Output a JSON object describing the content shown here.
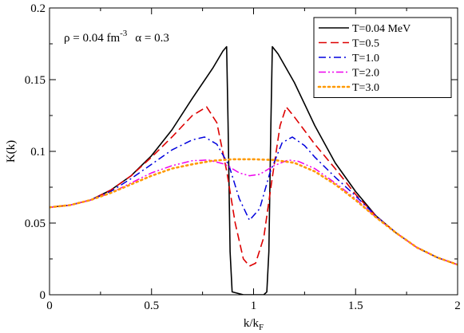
{
  "chart_data": {
    "type": "line",
    "xlabel": "k/k",
    "xlabel_sub": "F",
    "ylabel": "K(k)",
    "xlim": [
      0,
      2
    ],
    "ylim": [
      0,
      0.2
    ],
    "xticks": [
      0,
      0.5,
      1,
      1.5,
      2
    ],
    "xtick_labels": [
      "0",
      "0.5",
      "1",
      "1.5",
      "2"
    ],
    "yticks": [
      0,
      0.05,
      0.1,
      0.15,
      0.2
    ],
    "ytick_labels": [
      "0",
      "0.05",
      "0.1",
      "0.15",
      "0.2"
    ],
    "grid": false,
    "legend_position": "top-right",
    "annotation": {
      "density_label": "ρ = 0.04 fm",
      "density_exponent": "-3",
      "alpha_label": "α = 0.3"
    },
    "series": [
      {
        "name": "T=0.04 MeV",
        "color": "#000000",
        "dash": "solid",
        "points": [
          [
            0,
            0.061
          ],
          [
            0.1,
            0.0625
          ],
          [
            0.2,
            0.066
          ],
          [
            0.3,
            0.073
          ],
          [
            0.4,
            0.083
          ],
          [
            0.5,
            0.097
          ],
          [
            0.6,
            0.115
          ],
          [
            0.7,
            0.137
          ],
          [
            0.8,
            0.158
          ],
          [
            0.85,
            0.17
          ],
          [
            0.868,
            0.173
          ],
          [
            0.875,
            0.12
          ],
          [
            0.885,
            0.03
          ],
          [
            0.895,
            0.002
          ],
          [
            0.95,
            0.0
          ],
          [
            1.0,
            0.0
          ],
          [
            1.05,
            0.0
          ],
          [
            1.065,
            0.002
          ],
          [
            1.075,
            0.03
          ],
          [
            1.085,
            0.12
          ],
          [
            1.092,
            0.173
          ],
          [
            1.12,
            0.168
          ],
          [
            1.2,
            0.148
          ],
          [
            1.3,
            0.118
          ],
          [
            1.4,
            0.092
          ],
          [
            1.5,
            0.072
          ],
          [
            1.6,
            0.055
          ],
          [
            1.7,
            0.043
          ],
          [
            1.8,
            0.033
          ],
          [
            1.9,
            0.026
          ],
          [
            2.0,
            0.021
          ]
        ]
      },
      {
        "name": "T=0.5",
        "color": "#dd0000",
        "dash": "dashed",
        "points": [
          [
            0,
            0.061
          ],
          [
            0.1,
            0.0625
          ],
          [
            0.2,
            0.066
          ],
          [
            0.3,
            0.073
          ],
          [
            0.4,
            0.083
          ],
          [
            0.5,
            0.096
          ],
          [
            0.6,
            0.11
          ],
          [
            0.7,
            0.125
          ],
          [
            0.77,
            0.131
          ],
          [
            0.82,
            0.12
          ],
          [
            0.87,
            0.085
          ],
          [
            0.91,
            0.05
          ],
          [
            0.95,
            0.025
          ],
          [
            0.98,
            0.02
          ],
          [
            1.01,
            0.022
          ],
          [
            1.05,
            0.04
          ],
          [
            1.09,
            0.08
          ],
          [
            1.13,
            0.118
          ],
          [
            1.16,
            0.131
          ],
          [
            1.2,
            0.124
          ],
          [
            1.3,
            0.105
          ],
          [
            1.4,
            0.088
          ],
          [
            1.5,
            0.07
          ],
          [
            1.6,
            0.055
          ],
          [
            1.7,
            0.043
          ],
          [
            1.8,
            0.033
          ],
          [
            1.9,
            0.026
          ],
          [
            2.0,
            0.021
          ]
        ]
      },
      {
        "name": "T=1.0",
        "color": "#0000dd",
        "dash": "dashdot",
        "points": [
          [
            0,
            0.061
          ],
          [
            0.1,
            0.0625
          ],
          [
            0.2,
            0.066
          ],
          [
            0.3,
            0.072
          ],
          [
            0.4,
            0.081
          ],
          [
            0.5,
            0.091
          ],
          [
            0.6,
            0.101
          ],
          [
            0.7,
            0.108
          ],
          [
            0.76,
            0.11
          ],
          [
            0.82,
            0.105
          ],
          [
            0.88,
            0.09
          ],
          [
            0.93,
            0.067
          ],
          [
            0.98,
            0.052
          ],
          [
            1.03,
            0.06
          ],
          [
            1.08,
            0.085
          ],
          [
            1.14,
            0.106
          ],
          [
            1.19,
            0.11
          ],
          [
            1.25,
            0.104
          ],
          [
            1.3,
            0.096
          ],
          [
            1.4,
            0.082
          ],
          [
            1.5,
            0.069
          ],
          [
            1.6,
            0.055
          ],
          [
            1.7,
            0.043
          ],
          [
            1.8,
            0.033
          ],
          [
            1.9,
            0.026
          ],
          [
            2.0,
            0.021
          ]
        ]
      },
      {
        "name": "T=2.0",
        "color": "#ee00ee",
        "dash": "dashdotdot",
        "points": [
          [
            0,
            0.061
          ],
          [
            0.1,
            0.0625
          ],
          [
            0.2,
            0.066
          ],
          [
            0.3,
            0.071
          ],
          [
            0.4,
            0.078
          ],
          [
            0.5,
            0.085
          ],
          [
            0.6,
            0.09
          ],
          [
            0.7,
            0.0935
          ],
          [
            0.78,
            0.094
          ],
          [
            0.86,
            0.091
          ],
          [
            0.93,
            0.085
          ],
          [
            0.98,
            0.083
          ],
          [
            1.03,
            0.084
          ],
          [
            1.1,
            0.09
          ],
          [
            1.17,
            0.094
          ],
          [
            1.22,
            0.093
          ],
          [
            1.3,
            0.088
          ],
          [
            1.4,
            0.078
          ],
          [
            1.5,
            0.067
          ],
          [
            1.6,
            0.054
          ],
          [
            1.7,
            0.043
          ],
          [
            1.8,
            0.033
          ],
          [
            1.9,
            0.026
          ],
          [
            2.0,
            0.021
          ]
        ]
      },
      {
        "name": "T=3.0",
        "color": "#ff9900",
        "dash": "dotted",
        "points": [
          [
            0,
            0.061
          ],
          [
            0.1,
            0.0625
          ],
          [
            0.2,
            0.066
          ],
          [
            0.3,
            0.071
          ],
          [
            0.4,
            0.077
          ],
          [
            0.5,
            0.083
          ],
          [
            0.6,
            0.088
          ],
          [
            0.7,
            0.091
          ],
          [
            0.8,
            0.0935
          ],
          [
            0.9,
            0.0945
          ],
          [
            1.0,
            0.0945
          ],
          [
            1.1,
            0.094
          ],
          [
            1.2,
            0.092
          ],
          [
            1.3,
            0.086
          ],
          [
            1.4,
            0.077
          ],
          [
            1.5,
            0.066
          ],
          [
            1.6,
            0.054
          ],
          [
            1.7,
            0.043
          ],
          [
            1.8,
            0.033
          ],
          [
            1.9,
            0.026
          ],
          [
            2.0,
            0.021
          ]
        ]
      }
    ]
  }
}
